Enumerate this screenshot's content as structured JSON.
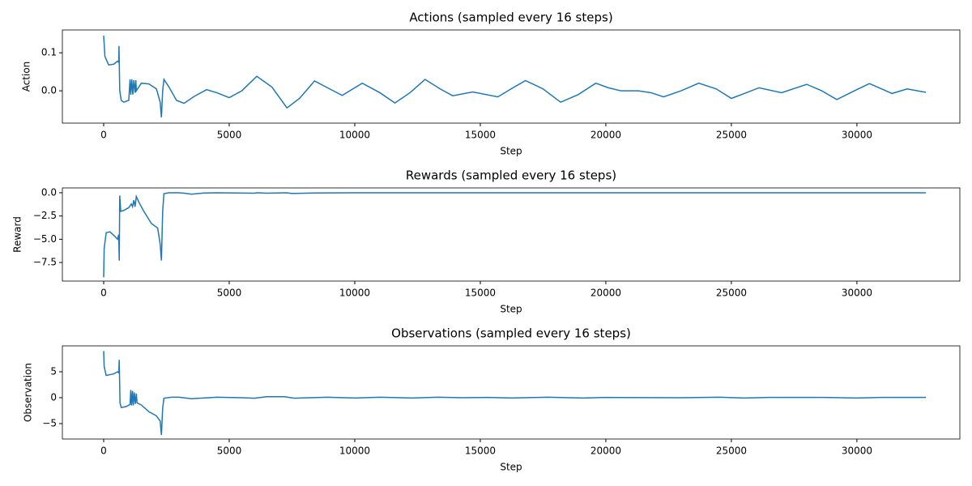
{
  "chart_data": [
    {
      "type": "line",
      "title": "Actions (sampled every 16 steps)",
      "x_label": "Step",
      "y_label": "Action",
      "x": [
        0,
        50,
        200,
        400,
        550,
        600,
        610,
        640,
        700,
        800,
        1000,
        1050,
        1080,
        1120,
        1160,
        1200,
        1250,
        1280,
        1300,
        1500,
        1800,
        2100,
        2250,
        2300,
        2350,
        2400,
        2600,
        2900,
        3200,
        3600,
        4100,
        4500,
        5000,
        5500,
        6100,
        6700,
        7300,
        7800,
        8400,
        9000,
        9500,
        10300,
        11000,
        11600,
        12200,
        12800,
        13400,
        13900,
        14700,
        15700,
        16300,
        16800,
        17500,
        18200,
        18900,
        19600,
        20100,
        20600,
        21300,
        21800,
        22300,
        23000,
        23700,
        24400,
        25000,
        25600,
        26100,
        27000,
        28000,
        28600,
        29200,
        29900,
        30500,
        31400,
        32000,
        32750
      ],
      "series": [
        {
          "name": "Action",
          "color": "#1f77b4",
          "values": [
            0.145,
            0.09,
            0.068,
            0.07,
            0.078,
            0.075,
            0.118,
            0.0,
            -0.025,
            -0.03,
            -0.025,
            0.03,
            -0.01,
            0.03,
            -0.01,
            0.028,
            -0.005,
            0.028,
            0.0,
            0.02,
            0.018,
            0.005,
            -0.03,
            -0.07,
            0.0,
            0.03,
            0.01,
            -0.025,
            -0.033,
            -0.015,
            0.003,
            -0.005,
            -0.018,
            0.0,
            0.038,
            0.01,
            -0.045,
            -0.02,
            0.026,
            0.005,
            -0.012,
            0.02,
            -0.005,
            -0.032,
            -0.005,
            0.03,
            0.005,
            -0.013,
            -0.003,
            -0.016,
            0.008,
            0.027,
            0.005,
            -0.03,
            -0.01,
            0.02,
            0.008,
            0.0,
            0.0,
            -0.005,
            -0.016,
            0.0,
            0.02,
            0.005,
            -0.02,
            -0.005,
            0.008,
            -0.005,
            0.017,
            0.0,
            -0.023,
            0.0,
            0.019,
            -0.007,
            0.005,
            -0.004
          ]
        }
      ],
      "xlim": [
        -1645,
        34100
      ],
      "ylim": [
        -0.085,
        0.16
      ],
      "xticks": [
        0,
        5000,
        10000,
        15000,
        20000,
        25000,
        30000
      ],
      "yticks": [
        {
          "value": 0,
          "label": "0.0"
        },
        0.1
      ]
    },
    {
      "type": "line",
      "title": "Rewards (sampled every 16 steps)",
      "x_label": "Step",
      "y_label": "Reward",
      "x": [
        0,
        20,
        100,
        250,
        450,
        550,
        600,
        620,
        640,
        680,
        800,
        1000,
        1100,
        1150,
        1200,
        1250,
        1300,
        1400,
        1600,
        1900,
        2150,
        2250,
        2300,
        2350,
        2400,
        2600,
        3000,
        3200,
        3500,
        4000,
        4500,
        6000,
        6100,
        6500,
        7300,
        7500,
        8400,
        10000,
        15000,
        20000,
        25000,
        30000,
        32750
      ],
      "series": [
        {
          "name": "Reward",
          "color": "#1f77b4",
          "values": [
            -9.1,
            -6,
            -4.3,
            -4.2,
            -4.7,
            -5.0,
            -4.5,
            -7.3,
            -0.3,
            -2.0,
            -1.9,
            -1.6,
            -1.2,
            -1.5,
            -0.8,
            -1.5,
            -0.4,
            -1.0,
            -2.0,
            -3.3,
            -3.8,
            -5.5,
            -7.3,
            -2,
            -0.1,
            0.0,
            0.0,
            -0.05,
            -0.15,
            -0.03,
            0.0,
            -0.05,
            0.0,
            -0.05,
            0.0,
            -0.08,
            -0.02,
            0.0,
            0.0,
            0.0,
            0.0,
            0.0,
            0.0
          ]
        }
      ],
      "xlim": [
        -1645,
        34100
      ],
      "ylim": [
        -9.5,
        0.52
      ],
      "xticks": [
        0,
        5000,
        10000,
        15000,
        20000,
        25000,
        30000
      ],
      "yticks": [
        {
          "value": -7.5,
          "label": "−7.5"
        },
        {
          "value": -5,
          "label": "−5.0"
        },
        {
          "value": -2.5,
          "label": "−2.5"
        },
        {
          "value": 0,
          "label": "0.0"
        }
      ]
    },
    {
      "type": "line",
      "title": "Observations (sampled every 16 steps)",
      "x_label": "Step",
      "y_label": "Observation",
      "x": [
        0,
        20,
        100,
        400,
        550,
        600,
        620,
        650,
        700,
        900,
        1050,
        1080,
        1110,
        1150,
        1180,
        1220,
        1260,
        1300,
        1330,
        1500,
        1800,
        2100,
        2250,
        2300,
        2350,
        2400,
        2700,
        3000,
        3500,
        4500,
        5500,
        6000,
        6500,
        7200,
        7600,
        8900,
        10000,
        11000,
        12300,
        13300,
        14300,
        15300,
        16300,
        17700,
        19100,
        20000,
        23000,
        24500,
        25500,
        26500,
        28700,
        30000,
        31000,
        32750
      ],
      "series": [
        {
          "name": "Observation",
          "color": "#1f77b4",
          "values": [
            9,
            6,
            4.3,
            4.6,
            5,
            4.8,
            7.3,
            -1,
            -1.9,
            -1.7,
            -1.3,
            1.5,
            -1.5,
            1.3,
            -1.5,
            1.0,
            -1.2,
            0.8,
            -1.0,
            -1.4,
            -2.7,
            -3.5,
            -4.5,
            -7.2,
            -2,
            -0.1,
            0.1,
            0.1,
            -0.2,
            0.1,
            0.0,
            -0.1,
            0.2,
            0.2,
            -0.1,
            0.1,
            -0.05,
            0.1,
            -0.05,
            0.1,
            0.0,
            0.05,
            -0.05,
            0.1,
            -0.05,
            0.05,
            0.0,
            0.1,
            -0.05,
            0.05,
            0.05,
            -0.05,
            0.05,
            0.05
          ]
        }
      ],
      "xlim": [
        -1645,
        34100
      ],
      "ylim": [
        -7.97,
        10
      ],
      "xticks": [
        0,
        5000,
        10000,
        15000,
        20000,
        25000,
        30000
      ],
      "yticks": [
        {
          "value": -5,
          "label": "−5"
        },
        0,
        5
      ]
    }
  ]
}
